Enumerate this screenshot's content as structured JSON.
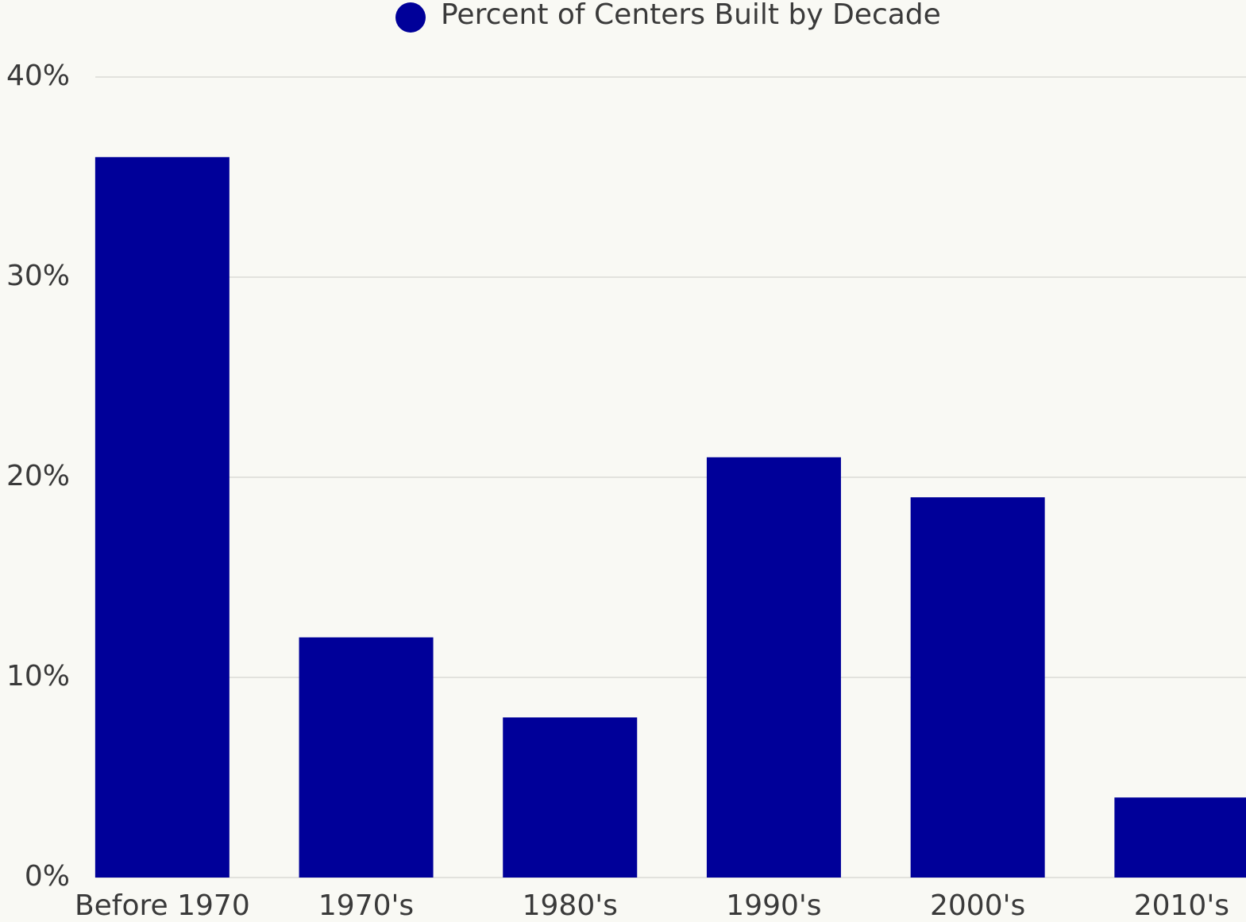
{
  "chart_data": {
    "type": "bar",
    "categories": [
      "Before 1970",
      "1970's",
      "1980's",
      "1990's",
      "2000's",
      "2010's"
    ],
    "series": [
      {
        "name": "Percent of Centers Built by Decade",
        "color": "#000099",
        "values": [
          36,
          12,
          8,
          21,
          19,
          4
        ]
      }
    ],
    "ylim": [
      0,
      40
    ],
    "yticks": [
      {
        "value": 0,
        "label": "0%"
      },
      {
        "value": 10,
        "label": "10%"
      },
      {
        "value": 20,
        "label": "20%"
      },
      {
        "value": 30,
        "label": "30%"
      },
      {
        "value": 40,
        "label": "40%"
      }
    ],
    "grid": true,
    "legend": "top"
  }
}
